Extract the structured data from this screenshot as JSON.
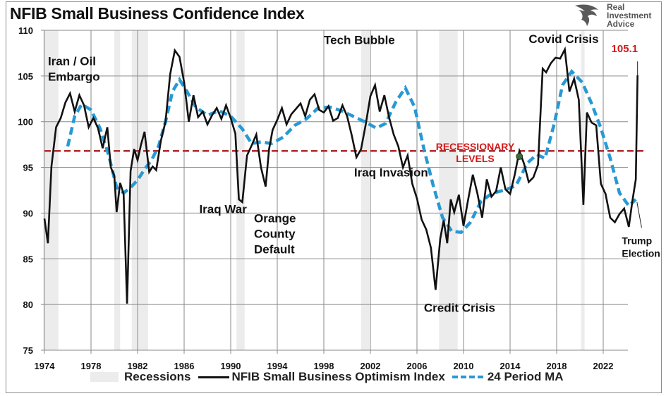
{
  "title": "NFIB Small Business Confidence Index",
  "logo": {
    "lines": [
      "Real",
      "Investment",
      "Advice"
    ],
    "icon": "eagle-head-icon"
  },
  "colors": {
    "index_line": "#111111",
    "ma_line": "#2899d4",
    "threshold": "#b22a2e",
    "recession": "#ececec",
    "highlight": "#d11a1a",
    "marker": "#3a6b35"
  },
  "legend": {
    "recessions": "Recessions",
    "index": "NFIB Small Business Optimism Index",
    "ma": "24 Period MA"
  },
  "chart_data": {
    "type": "line",
    "title": "NFIB Small Business Confidence Index",
    "xlabel": "",
    "ylabel": "",
    "xlim": [
      1974,
      2025
    ],
    "ylim": [
      75,
      110
    ],
    "y_ticks": [
      75,
      80,
      85,
      90,
      95,
      100,
      105,
      110
    ],
    "x_ticks": [
      1974,
      1978,
      1982,
      1986,
      1990,
      1994,
      1998,
      2002,
      2006,
      2010,
      2014,
      2018,
      2022
    ],
    "grid": true,
    "legend_position": "bottom",
    "recessions": [
      [
        1973.9,
        1975.2
      ],
      [
        1980.0,
        1980.5
      ],
      [
        1981.5,
        1982.9
      ],
      [
        1990.5,
        1991.2
      ],
      [
        2001.2,
        2001.9
      ],
      [
        2007.9,
        2009.5
      ],
      [
        2020.1,
        2020.4
      ]
    ],
    "threshold": {
      "value": 96.8,
      "label_line1": "RECESSIONARY",
      "label_line2": "LEVELS"
    },
    "series": [
      {
        "name": "NFIB Small Business Optimism Index",
        "x": [
          1974.0,
          1974.3,
          1974.6,
          1975.0,
          1975.4,
          1975.8,
          1976.2,
          1976.6,
          1977.0,
          1977.4,
          1977.8,
          1978.2,
          1978.6,
          1979.0,
          1979.4,
          1979.7,
          1980.0,
          1980.2,
          1980.5,
          1980.8,
          1981.1,
          1981.4,
          1981.7,
          1982.0,
          1982.3,
          1982.6,
          1983.0,
          1983.3,
          1983.6,
          1984.0,
          1984.4,
          1984.8,
          1985.2,
          1985.6,
          1986.0,
          1986.4,
          1986.8,
          1987.2,
          1987.6,
          1988.0,
          1988.4,
          1988.8,
          1989.2,
          1989.6,
          1990.0,
          1990.4,
          1990.7,
          1991.0,
          1991.4,
          1991.8,
          1992.2,
          1992.6,
          1993.0,
          1993.3,
          1993.6,
          1994.0,
          1994.4,
          1994.8,
          1995.2,
          1995.6,
          1996.0,
          1996.4,
          1996.8,
          1997.2,
          1997.6,
          1998.0,
          1998.4,
          1998.8,
          1999.2,
          1999.6,
          2000.0,
          2000.4,
          2000.8,
          2001.2,
          2001.6,
          2002.0,
          2002.4,
          2002.8,
          2003.2,
          2003.6,
          2004.0,
          2004.4,
          2004.8,
          2005.2,
          2005.6,
          2006.0,
          2006.4,
          2006.8,
          2007.2,
          2007.6,
          2008.0,
          2008.3,
          2008.6,
          2008.9,
          2009.2,
          2009.6,
          2010.0,
          2010.4,
          2010.8,
          2011.2,
          2011.6,
          2012.0,
          2012.4,
          2012.8,
          2013.2,
          2013.6,
          2014.0,
          2014.4,
          2014.8,
          2015.2,
          2015.6,
          2016.0,
          2016.4,
          2016.8,
          2017.1,
          2017.5,
          2017.9,
          2018.3,
          2018.7,
          2019.1,
          2019.5,
          2019.9,
          2020.3,
          2020.6,
          2021.0,
          2021.4,
          2021.8,
          2022.2,
          2022.6,
          2023.0,
          2023.4,
          2023.8,
          2024.2,
          2024.5,
          2024.8,
          2024.95
        ],
        "values": [
          89.4,
          86.7,
          95.1,
          99.4,
          100.4,
          102.1,
          103.1,
          101.1,
          102.9,
          101.8,
          99.4,
          100.4,
          99.3,
          97.1,
          99.4,
          95.0,
          94.1,
          90.1,
          93.3,
          92.1,
          80.1,
          94.6,
          97.0,
          95.8,
          97.5,
          98.9,
          94.5,
          95.1,
          94.7,
          97.9,
          100.0,
          105.2,
          107.8,
          107.1,
          104.3,
          100.0,
          102.9,
          100.5,
          101.1,
          99.7,
          100.7,
          101.5,
          100.3,
          101.8,
          100.4,
          98.7,
          91.5,
          91.2,
          96.3,
          97.4,
          98.6,
          95.0,
          92.9,
          97.0,
          99.1,
          100.2,
          101.5,
          99.7,
          100.8,
          101.4,
          102.0,
          100.6,
          102.4,
          103.0,
          101.3,
          101.0,
          101.7,
          100.1,
          100.4,
          101.8,
          100.6,
          98.5,
          96.1,
          97.0,
          99.7,
          102.8,
          104.0,
          101.1,
          102.9,
          100.5,
          98.6,
          97.3,
          95.0,
          96.3,
          93.2,
          91.6,
          89.3,
          88.2,
          86.2,
          81.6,
          87.2,
          89.2,
          86.7,
          91.5,
          90.1,
          92.0,
          88.6,
          91.5,
          94.2,
          92.1,
          89.5,
          93.7,
          91.8,
          92.4,
          95.0,
          92.6,
          92.1,
          94.2,
          96.8,
          95.4,
          93.4,
          93.9,
          95.3,
          105.8,
          105.4,
          106.4,
          107.0,
          106.9,
          107.9,
          103.3,
          104.7,
          102.4,
          90.9,
          101.0,
          99.9,
          99.6,
          93.2,
          92.1,
          89.5,
          89.0,
          89.9,
          90.5,
          88.5,
          91.3,
          93.7,
          105.1
        ]
      },
      {
        "name": "24 Period MA",
        "x": [
          1976.0,
          1976.6,
          1977.2,
          1978.0,
          1978.8,
          1979.5,
          1980.2,
          1980.8,
          1981.4,
          1982.0,
          1982.6,
          1983.2,
          1983.8,
          1984.4,
          1985.0,
          1985.6,
          1986.2,
          1987.0,
          1988.0,
          1989.0,
          1990.0,
          1991.0,
          1991.8,
          1992.6,
          1993.5,
          1994.5,
          1995.5,
          1996.5,
          1997.5,
          1998.5,
          1999.5,
          2000.5,
          2001.5,
          2002.5,
          2003.3,
          2004.2,
          2005.0,
          2005.8,
          2006.6,
          2007.4,
          2008.2,
          2009.0,
          2009.8,
          2010.6,
          2011.5,
          2012.5,
          2013.5,
          2014.5,
          2015.5,
          2016.3,
          2017.0,
          2017.8,
          2018.5,
          2019.3,
          2020.2,
          2021.0,
          2021.8,
          2022.6,
          2023.4,
          2024.2,
          2024.8
        ],
        "values": [
          97.3,
          100.6,
          101.9,
          101.3,
          99.2,
          96.4,
          92.8,
          92.2,
          92.8,
          93.6,
          94.8,
          95.8,
          97.3,
          100.0,
          103.3,
          104.6,
          103.4,
          101.6,
          100.7,
          101.2,
          100.6,
          99.2,
          97.6,
          97.8,
          97.6,
          98.3,
          99.6,
          100.3,
          101.5,
          101.6,
          101.2,
          100.6,
          100.0,
          99.3,
          99.8,
          102.2,
          103.7,
          101.6,
          97.0,
          93.0,
          89.5,
          88.0,
          87.9,
          89.0,
          91.3,
          92.2,
          92.5,
          93.0,
          95.5,
          96.4,
          96.0,
          99.8,
          104.0,
          105.5,
          104.3,
          102.0,
          99.3,
          96.0,
          92.2,
          90.8,
          91.5
        ]
      }
    ],
    "annotations": [
      {
        "text_lines": [
          "Iran / Oil",
          "Embargo"
        ],
        "year": 1974.3,
        "value": 106.2
      },
      {
        "text_lines": [
          "Iraq War"
        ],
        "year": 1987.3,
        "value": 90.0
      },
      {
        "text_lines": [
          "Orange",
          "County",
          "Default"
        ],
        "year": 1992.0,
        "value": 89.0
      },
      {
        "text_lines": [
          "Tech Bubble"
        ],
        "year": 1998.0,
        "value": 108.5
      },
      {
        "text_lines": [
          "Iraq Invasion"
        ],
        "year": 2000.6,
        "value": 94.0
      },
      {
        "text_lines": [
          "Credit Crisis"
        ],
        "year": 2006.6,
        "value": 79.2
      },
      {
        "text_lines": [
          "Covid Crisis"
        ],
        "year": 2015.6,
        "value": 108.6
      },
      {
        "text_lines": [
          "105.1"
        ],
        "year": 2022.7,
        "value": 107.6,
        "style": "red"
      },
      {
        "text_lines": [
          "Trump",
          "Election"
        ],
        "year": 2023.6,
        "value": 86.6,
        "style": "small"
      }
    ],
    "marker": {
      "year": 2014.8,
      "value": 96.2
    }
  }
}
